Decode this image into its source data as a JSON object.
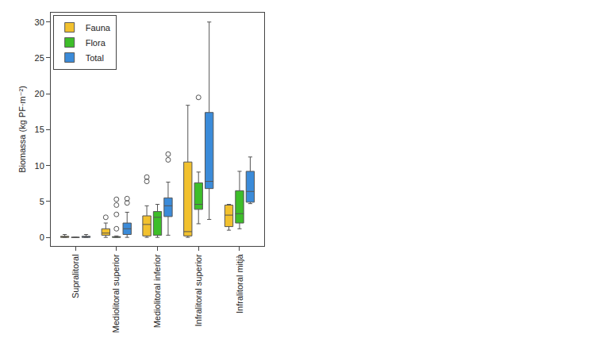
{
  "chart_data": {
    "type": "box",
    "y_label": "Biomassa (kg PF·m⁻²)",
    "categories": [
      "Supralitoral",
      "Mediolitoral superior",
      "Mediolitoral inferior",
      "Infralitoral superior",
      "Infralitoral mitjà"
    ],
    "series": [
      {
        "name": "Fauna",
        "color": "#f2c12e",
        "q1": [
          0,
          0.3,
          0.2,
          0.2,
          1.5
        ],
        "median": [
          0.05,
          0.6,
          1.8,
          0.8,
          3.1
        ],
        "q3": [
          0.15,
          1.2,
          3.0,
          10.5,
          4.5
        ],
        "lowerfence": [
          0,
          0,
          0,
          0,
          1.0
        ],
        "upperfence": [
          0.4,
          2.0,
          4.4,
          18.4,
          4.6
        ],
        "outliers": [
          [],
          [
            2.8
          ],
          [
            7.8,
            8.4
          ],
          [],
          []
        ]
      },
      {
        "name": "Flora",
        "color": "#3dbe29",
        "q1": [
          0,
          0,
          0.3,
          3.9,
          2.0
        ],
        "median": [
          0,
          0.05,
          2.8,
          4.6,
          3.3
        ],
        "q3": [
          0,
          0.1,
          3.6,
          7.6,
          6.5
        ],
        "lowerfence": [
          0,
          0,
          0,
          1.9,
          1.2
        ],
        "upperfence": [
          0,
          0.2,
          4.6,
          9.1,
          9.2
        ],
        "outliers": [
          [],
          [
            1.2,
            3.2,
            4.5,
            5.3
          ],
          [],
          [
            19.5
          ],
          []
        ]
      },
      {
        "name": "Total",
        "color": "#3b8bd9",
        "q1": [
          0,
          0.4,
          2.9,
          6.8,
          4.9
        ],
        "median": [
          0.05,
          1.2,
          4.4,
          7.8,
          6.4
        ],
        "q3": [
          0.15,
          2.0,
          5.5,
          17.4,
          9.2
        ],
        "lowerfence": [
          0,
          0,
          0.3,
          2.5,
          4.7
        ],
        "upperfence": [
          0.4,
          3.5,
          7.7,
          30,
          11.2
        ],
        "outliers": [
          [],
          [
            4.8,
            5.4
          ],
          [
            10.8,
            11.6
          ],
          [],
          []
        ]
      }
    ],
    "ylim": [
      -1.2,
      31.3
    ],
    "yticks": [
      0,
      5,
      10,
      15,
      20,
      25,
      30
    ],
    "legend": "top-left",
    "grid": false
  }
}
